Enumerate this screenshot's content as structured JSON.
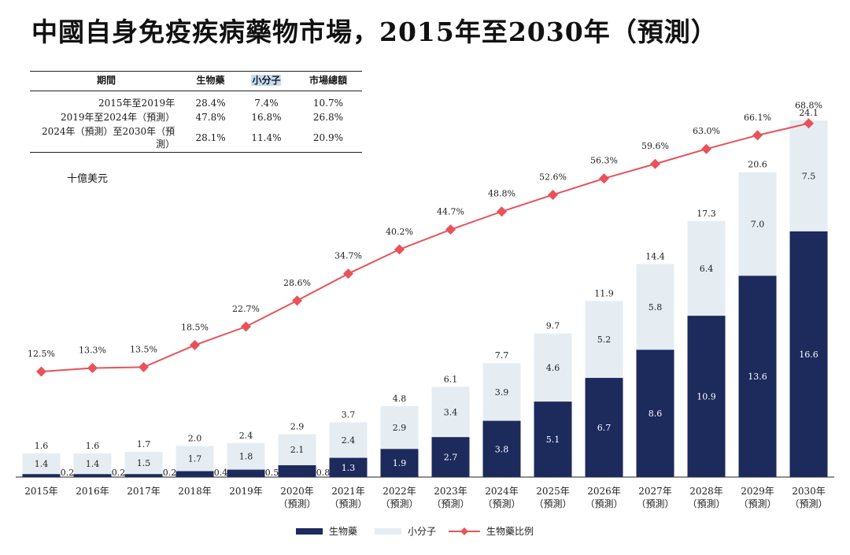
{
  "title": "中國自身免疫疾病藥物市場，2015年至2030年（預測）",
  "cagr_table": {
    "headers": [
      "期間",
      "生物藥",
      "小分子",
      "市場總額"
    ],
    "rows": [
      [
        "2015年至2019年",
        "28.4%",
        "7.4%",
        "10.7%"
      ],
      [
        "2019年至2024年（預測）",
        "47.8%",
        "16.8%",
        "26.8%"
      ],
      [
        "2024年（預測）至2030年（預測）",
        "28.1%",
        "11.4%",
        "20.9%"
      ]
    ]
  },
  "chart_data": {
    "type": "bar",
    "stacked": true,
    "unit_label": "十億美元",
    "categories": [
      [
        "2015年"
      ],
      [
        "2016年"
      ],
      [
        "2017年"
      ],
      [
        "2018年"
      ],
      [
        "2019年"
      ],
      [
        "2020年",
        "（預測）"
      ],
      [
        "2021年",
        "（預測）"
      ],
      [
        "2022年",
        "（預測）"
      ],
      [
        "2023年",
        "（預測）"
      ],
      [
        "2024年",
        "（預測）"
      ],
      [
        "2025年",
        "（預測）"
      ],
      [
        "2026年",
        "（預測）"
      ],
      [
        "2027年",
        "（預測）"
      ],
      [
        "2028年",
        "（預測）"
      ],
      [
        "2029年",
        "（預測）"
      ],
      [
        "2030年",
        "（預測）"
      ]
    ],
    "series": [
      {
        "name": "生物藥",
        "color": "#1c2a5c",
        "values": [
          0.2,
          0.2,
          0.2,
          0.4,
          0.5,
          0.8,
          1.3,
          1.9,
          2.7,
          3.8,
          5.1,
          6.7,
          8.6,
          10.9,
          13.6,
          16.6
        ]
      },
      {
        "name": "小分子",
        "color": "#e6edf2",
        "values": [
          1.4,
          1.4,
          1.5,
          1.7,
          1.8,
          2.1,
          2.4,
          2.9,
          3.4,
          3.9,
          4.6,
          5.2,
          5.8,
          6.4,
          7.0,
          7.5
        ]
      }
    ],
    "totals": [
      1.6,
      1.6,
      1.7,
      2.0,
      2.4,
      2.9,
      3.7,
      4.8,
      6.1,
      7.7,
      9.7,
      11.9,
      14.4,
      17.3,
      20.6,
      24.1
    ],
    "line_series": {
      "name": "生物藥比例",
      "color": "#e8525a",
      "values": [
        12.5,
        13.3,
        13.5,
        18.5,
        22.7,
        28.6,
        34.7,
        40.2,
        44.7,
        48.8,
        52.6,
        56.3,
        59.6,
        63.0,
        66.1,
        68.8
      ]
    },
    "legend_position": "bottom-center"
  }
}
